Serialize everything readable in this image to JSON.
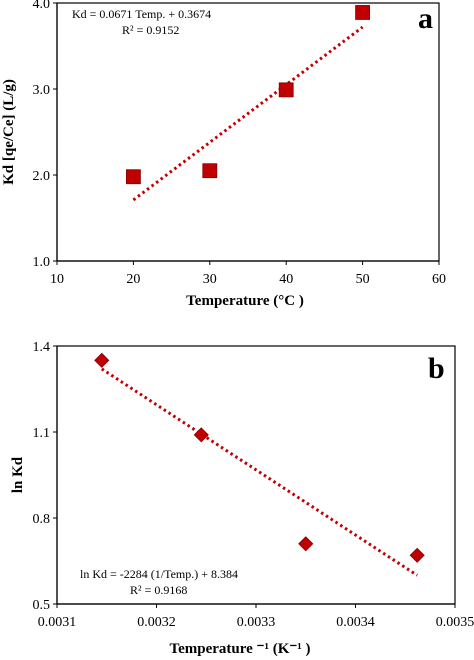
{
  "chart_data": [
    {
      "type": "scatter",
      "panel_label": "a",
      "xlabel": "Temperature  (°C )",
      "ylabel": "Kd [qe/Ce] (L/g)",
      "xlim": [
        10,
        60
      ],
      "ylim": [
        1.0,
        4.0
      ],
      "x_ticks": [
        "10",
        "20",
        "30",
        "40",
        "50",
        "60"
      ],
      "y_ticks": [
        "1.0",
        "2.0",
        "3.0",
        "4.0"
      ],
      "marker": "square",
      "marker_color": "#c00000",
      "series": [
        {
          "x": [
            20,
            30,
            40,
            50
          ],
          "y": [
            1.98,
            2.05,
            2.99,
            3.89
          ]
        }
      ],
      "trendline": {
        "x": [
          20,
          50
        ],
        "y": [
          1.71,
          3.72
        ],
        "style": "dotted",
        "color": "#c00000"
      },
      "equation": "Kd = 0.0671 Temp. + 0.3674",
      "r2": "R² = 0.9152"
    },
    {
      "type": "scatter",
      "panel_label": "b",
      "xlabel": "Temperature ⁻¹ (K⁻¹ )",
      "ylabel": "ln Kd",
      "xlim": [
        0.0031,
        0.0035
      ],
      "ylim": [
        0.5,
        1.4
      ],
      "x_ticks": [
        "0.0031",
        "0.0032",
        "0.0033",
        "0.0034",
        "0.0035"
      ],
      "y_ticks": [
        "0.5",
        "0.8",
        "1.1",
        "1.4"
      ],
      "marker": "diamond",
      "marker_color": "#c00000",
      "series": [
        {
          "x": [
            0.003145,
            0.003245,
            0.00335,
            0.003462
          ],
          "y": [
            1.35,
            1.09,
            0.71,
            0.67
          ]
        }
      ],
      "trendline": {
        "x": [
          0.003145,
          0.003462
        ],
        "y": [
          1.32,
          0.6
        ],
        "style": "dotted",
        "color": "#c00000"
      },
      "equation": "ln Kd = -2284 (1/Temp.) + 8.384",
      "r2": "R² = 0.9168"
    }
  ]
}
